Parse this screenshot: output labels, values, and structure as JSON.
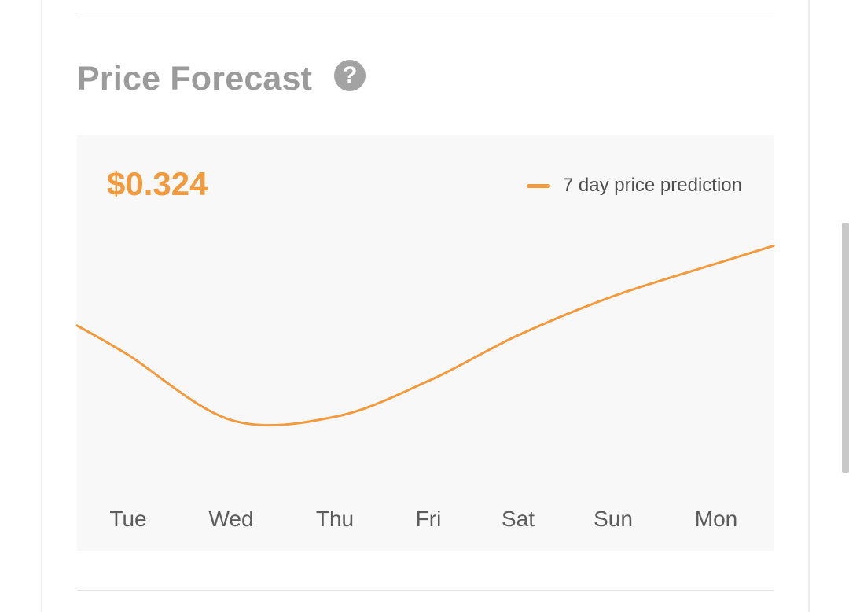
{
  "forecast": {
    "title": "Price Forecast",
    "help_icon": "question-circle-icon",
    "current_price": "$0.324"
  },
  "colors": {
    "accent": "#f19a3e",
    "title": "#9b9b9b",
    "panel_bg": "#f8f8f8"
  },
  "chart_data": {
    "type": "line",
    "categories": [
      "Tue",
      "Wed",
      "Thu",
      "Fri",
      "Sat",
      "Sun",
      "Mon"
    ],
    "series": [
      {
        "name": "7 day price prediction",
        "values": [
          0.64,
          0.44,
          0.45,
          0.56,
          0.7,
          0.82,
          0.92
        ]
      }
    ],
    "ylim": [
      0.3,
      1.0
    ],
    "grid": false,
    "legend": "top-right"
  }
}
